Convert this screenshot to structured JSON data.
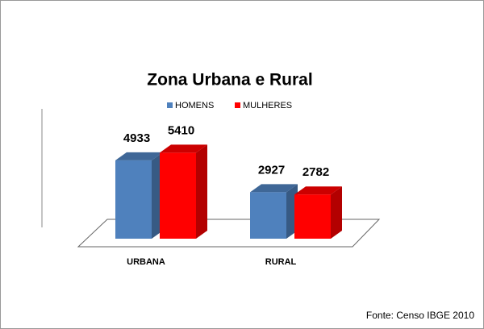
{
  "chart_data": {
    "type": "bar3d",
    "title": "Zona Urbana e Rural",
    "categories": [
      "URBANA",
      "RURAL"
    ],
    "series": [
      {
        "name": "HOMENS",
        "color": "#4f81bd",
        "values": [
          4933,
          2927
        ]
      },
      {
        "name": "MULHERES",
        "color": "#ff0000",
        "values": [
          5410,
          2782
        ]
      }
    ],
    "legend": "top",
    "source": "Fonte: Censo IBGE 2010"
  }
}
